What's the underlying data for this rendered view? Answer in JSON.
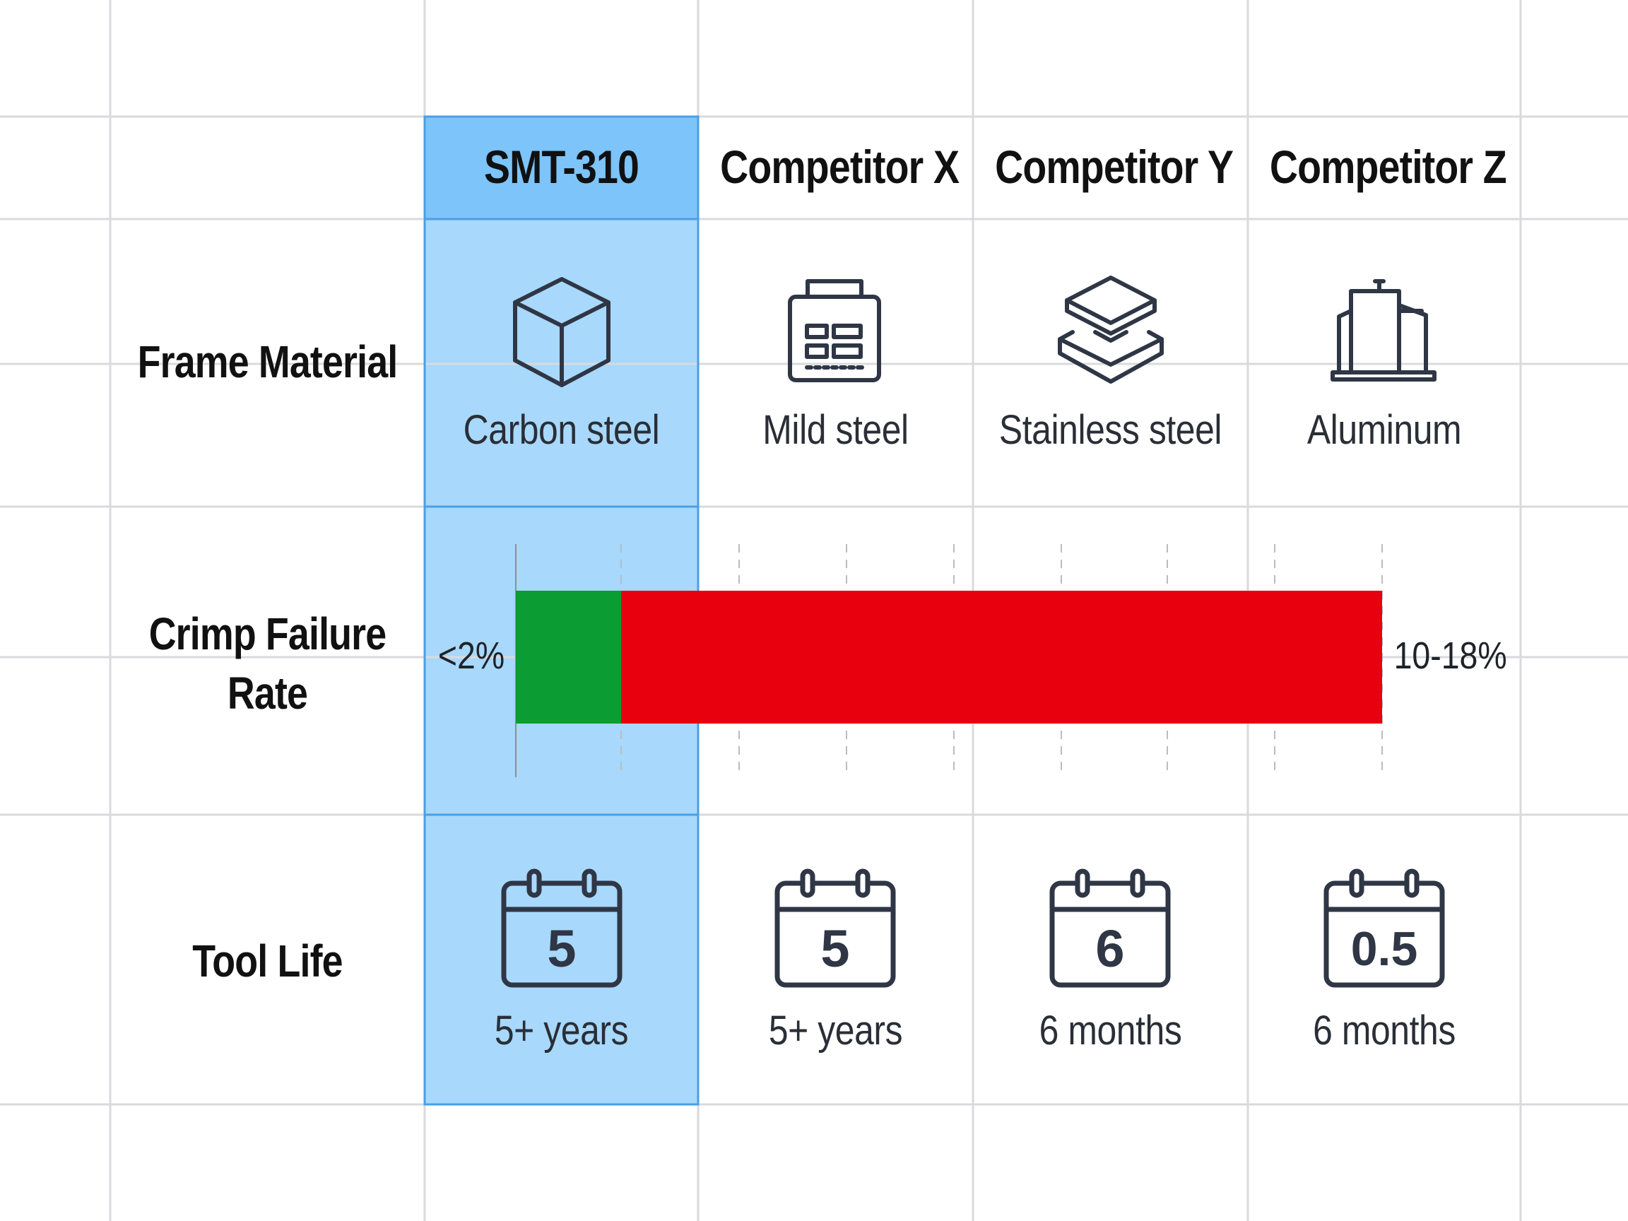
{
  "table": {
    "columns": [
      "SMT-310",
      "Competitor X",
      "Competitor Y",
      "Competitor Z"
    ],
    "highlight_column": "SMT-310",
    "rows": {
      "frame_material": {
        "label": "Frame Material",
        "values": [
          "Carbon steel",
          "Mild steel",
          "Stainless steel",
          "Aluminum"
        ],
        "icons": [
          "box-icon",
          "building-panel-icon",
          "stacked-layers-icon",
          "factory-building-icon"
        ]
      },
      "crimp_failure_rate": {
        "label_line1": "Crimp Failure",
        "label_line2": "Rate",
        "low_label": "<2%",
        "high_label": "10-18%",
        "low_fraction": 0.02,
        "high_fraction": 0.18
      },
      "tool_life": {
        "label": "Tool Life",
        "calendar_numbers": [
          "5",
          "5",
          "6",
          "0.5"
        ],
        "values": [
          "5+ years",
          "5+ years",
          "6 months",
          "6 months"
        ],
        "icons": [
          "calendar-icon",
          "calendar-icon",
          "calendar-icon",
          "calendar-icon"
        ]
      }
    }
  },
  "colors": {
    "highlight_header": "#7cc4fa",
    "highlight_body": "#a8d8fb",
    "highlight_border": "#4a9fe6",
    "gridline": "#d8dadd",
    "low_bar": "#0b9c33",
    "high_bar": "#e8000e",
    "icon_stroke": "#2f3645"
  }
}
